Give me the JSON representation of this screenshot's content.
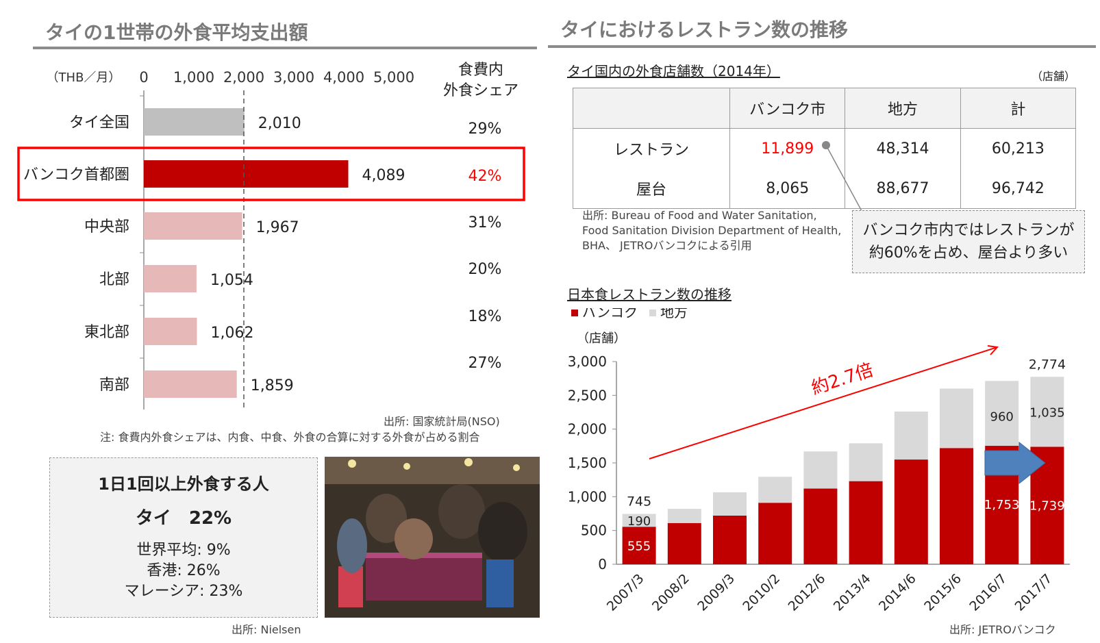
{
  "left_section": {
    "title": "タイの1世帯の外食平均支出額",
    "unit_label": "（THB／月）",
    "share_header": [
      "食費内",
      "外食シェア"
    ],
    "source": "出所: 国家統計局(NSO)",
    "note": "注: 食費内外食シェアは、内食、中食、外食の合算に対する外食が占める割合"
  },
  "right_section": {
    "title": "タイにおけるレストラン数の推移",
    "table_title": "タイ国内の外食店舗数（2014年）",
    "table_unit": "（店舗）",
    "table": {
      "headers": [
        "",
        "バンコク市",
        "地方",
        "計"
      ],
      "rows": [
        [
          "レストラン",
          "11,899",
          "48,314",
          "60,213"
        ],
        [
          "屋台",
          "8,065",
          "88,677",
          "96,742"
        ]
      ]
    },
    "table_source": [
      "出所: Bureau of Food and Water Sanitation,",
      "Food Sanitation Division Department of Health,",
      "BHA、 JETROバンコクによる引用"
    ],
    "callout": [
      "バンコク市内ではレストランが",
      "約60%を占め、屋台より多い"
    ],
    "jp_chart_title": "日本食レストラン数の推移",
    "jp_source": "出所: JETROバンコク"
  },
  "survey": {
    "heading": "1日1回以上外食する人",
    "main": "タイ　22%",
    "lines": [
      "世界平均: 9%",
      "香港: 26%",
      "マレーシア: 23%"
    ],
    "source": "出所: Nielsen"
  },
  "colors": {
    "accent_red": "#c00000",
    "highlight_red": "#ff0000",
    "gray_bar": "#bfbfbf",
    "pink_bar": "#e6b9b8",
    "light_gray": "#d9d9d9",
    "arrow_blue": "#4f81bd"
  },
  "chart_data": [
    {
      "type": "bar",
      "orientation": "horizontal",
      "categories": [
        "タイ全国",
        "バンコク首都圏",
        "中央部",
        "北部",
        "東北部",
        "南部"
      ],
      "values": [
        2010,
        4089,
        1967,
        1054,
        1062,
        1859
      ],
      "value_labels": [
        "2,010",
        "4,089",
        "1,967",
        "1,054",
        "1,062",
        "1,859"
      ],
      "share_labels": [
        "29%",
        "42%",
        "31%",
        "20%",
        "18%",
        "27%"
      ],
      "highlight_index": 1,
      "xlim": [
        0,
        5000
      ],
      "xticks": [
        "0",
        "1,000",
        "2,000",
        "3,000",
        "4,000",
        "5,000"
      ],
      "reference_line": 2000
    },
    {
      "type": "bar",
      "stacked": true,
      "legend": [
        "バンコク",
        "地方"
      ],
      "ylabel": "（店舗）",
      "categories": [
        "2007/3",
        "2008/2",
        "2009/3",
        "2010/2",
        "2012/6",
        "2013/4",
        "2014/6",
        "2015/6",
        "2016/7",
        "2017/7"
      ],
      "series": [
        {
          "name": "バンコク",
          "values": [
            555,
            610,
            720,
            910,
            1120,
            1230,
            1550,
            1720,
            1753,
            1739
          ]
        },
        {
          "name": "地方",
          "values": [
            190,
            210,
            345,
            385,
            550,
            560,
            710,
            880,
            960,
            1035
          ]
        }
      ],
      "labels": {
        "totals": {
          "0": "745",
          "9": "2,774"
        },
        "bangkok": {
          "0": "555",
          "8": "1,753",
          "9": "1,739"
        },
        "regional": {
          "0": "190",
          "8": "960",
          "9": "1,035"
        }
      },
      "ylim": [
        0,
        3000
      ],
      "yticks": [
        "0",
        "500",
        "1,000",
        "1,500",
        "2,000",
        "2,500",
        "3,000"
      ],
      "annotation": "約2.7倍"
    }
  ]
}
